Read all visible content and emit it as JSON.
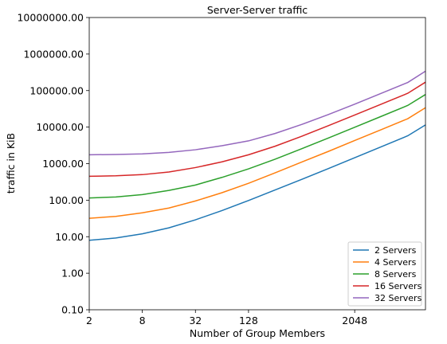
{
  "chart_data": {
    "type": "line",
    "title": "Server-Server traffic",
    "xlabel": "Number of Group Members",
    "ylabel": "traffic in KiB",
    "xscale": "log2",
    "yscale": "log10",
    "xlim": [
      2,
      13000
    ],
    "ylim": [
      0.1,
      10000000
    ],
    "xticks": [
      2,
      8,
      32,
      128,
      2048
    ],
    "xtick_labels": [
      "2",
      "8",
      "32",
      "128",
      "2048"
    ],
    "yticks": [
      0.1,
      1,
      10,
      100,
      1000,
      10000,
      100000,
      1000000,
      10000000
    ],
    "ytick_labels": [
      "0.10",
      "1.00",
      "10.00",
      "100.00",
      "1000.00",
      "10000.00",
      "100000.00",
      "1000000.00",
      "10000000.00"
    ],
    "grid": false,
    "legend_position": "lower-right",
    "x": [
      2,
      4,
      8,
      16,
      32,
      64,
      128,
      256,
      512,
      1024,
      2048,
      4096,
      8192,
      13000
    ],
    "series": [
      {
        "name": "2 Servers",
        "color": "#1f77b4",
        "values": [
          8,
          9.2,
          12,
          17.5,
          29,
          52,
          98,
          190,
          370,
          730,
          1450,
          2900,
          5800,
          11500
        ]
      },
      {
        "name": "4 Servers",
        "color": "#ff7f0e",
        "values": [
          32,
          36,
          45,
          61,
          95,
          160,
          290,
          560,
          1100,
          2150,
          4300,
          8500,
          17000,
          34000
        ]
      },
      {
        "name": "8 Servers",
        "color": "#2ca02c",
        "values": [
          115,
          122,
          142,
          185,
          260,
          420,
          720,
          1320,
          2550,
          5000,
          9900,
          19700,
          39300,
          78000
        ]
      },
      {
        "name": "16 Servers",
        "color": "#d62728",
        "values": [
          450,
          465,
          500,
          590,
          780,
          1120,
          1750,
          3000,
          5600,
          10900,
          21400,
          42500,
          84500,
          170000
        ]
      },
      {
        "name": "32 Servers",
        "color": "#9467bd",
        "values": [
          1750,
          1780,
          1850,
          2030,
          2400,
          3100,
          4200,
          6700,
          11800,
          22000,
          42500,
          84000,
          167000,
          340000
        ]
      }
    ]
  }
}
